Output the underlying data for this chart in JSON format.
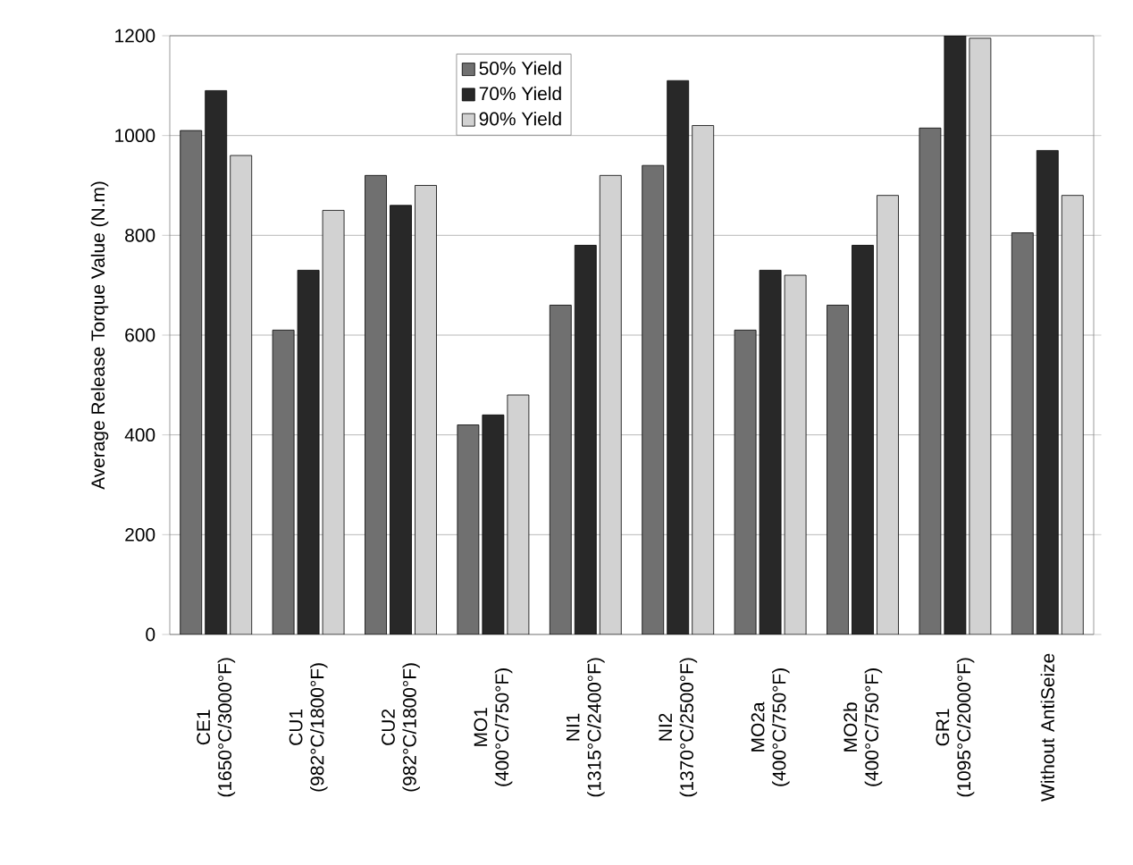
{
  "chart_data": {
    "type": "bar",
    "ylabel": "Average Release Torque Value (N.m)",
    "categories": [
      "CE1 (1650°C/3000°F)",
      "CU1 (982°C/1800°F)",
      "CU2 (982°C/1800°F)",
      "MO1 (400°C/750°F)",
      "NI1 (1315°C/2400°F)",
      "NI2 (1370°C/2500°F)",
      "MO2a (400°C/750°F)",
      "MO2b (400°C/750°F)",
      "GR1 (1095°C/2000°F)",
      "Without AntiSeize"
    ],
    "series": [
      {
        "name": "50% Yield",
        "color": "#707070",
        "values": [
          1010,
          610,
          920,
          420,
          660,
          940,
          610,
          660,
          1015,
          805
        ]
      },
      {
        "name": "70% Yield",
        "color": "#282828",
        "values": [
          1090,
          730,
          860,
          440,
          780,
          1110,
          730,
          780,
          1200,
          970
        ]
      },
      {
        "name": "90% Yield",
        "color": "#d2d2d2",
        "values": [
          960,
          850,
          900,
          480,
          920,
          1020,
          720,
          880,
          1195,
          880
        ]
      }
    ],
    "ylim": [
      0,
      1200
    ],
    "yticks": [
      0,
      200,
      400,
      600,
      800,
      1000,
      1200
    ],
    "grid": "y",
    "legend": "top"
  }
}
